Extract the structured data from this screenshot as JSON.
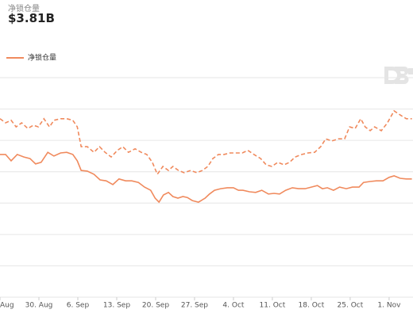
{
  "header": {
    "label": "净锁仓量",
    "value": "$3.81B"
  },
  "chart_data": {
    "type": "line",
    "legend_label": "净锁仓量",
    "xlim": [
      0,
      74.3
    ],
    "xticks": [
      {
        "value": 0,
        "label": "Aug"
      },
      {
        "value": 7,
        "label": "30. Aug"
      },
      {
        "value": 14,
        "label": "6. Sep"
      },
      {
        "value": 21,
        "label": "13. Sep"
      },
      {
        "value": 28,
        "label": "20. Sep"
      },
      {
        "value": 35,
        "label": "27. Sep"
      },
      {
        "value": 42,
        "label": "4. Oct"
      },
      {
        "value": 49,
        "label": "11. Oct"
      },
      {
        "value": 56,
        "label": "18. Oct"
      },
      {
        "value": 63,
        "label": "25. Oct"
      },
      {
        "value": 70,
        "label": "1. Nov"
      }
    ],
    "ylim": [
      0,
      7
    ],
    "yticks": [
      0,
      1,
      2,
      3,
      4,
      5,
      6,
      7
    ],
    "grid": true,
    "series": [
      {
        "name": "净锁仓量",
        "color": "#f08a5d",
        "dash": false,
        "x": [
          0.0,
          1.0,
          2.0,
          3.1,
          4.3,
          5.4,
          6.4,
          7.4,
          8.6,
          9.7,
          10.9,
          12.0,
          13.1,
          13.9,
          14.6,
          15.7,
          16.9,
          18.0,
          19.1,
          20.3,
          21.4,
          22.6,
          23.7,
          24.9,
          26.0,
          27.1,
          27.9,
          28.6,
          29.4,
          30.3,
          31.1,
          32.0,
          32.9,
          33.7,
          34.6,
          35.7,
          36.9,
          37.7,
          38.6,
          39.7,
          40.9,
          42.0,
          42.9,
          43.7,
          44.9,
          46.0,
          47.1,
          48.3,
          49.3,
          50.3,
          51.4,
          52.6,
          53.7,
          54.9,
          56.0,
          57.1,
          58.0,
          58.9,
          60.0,
          61.1,
          62.3,
          63.4,
          64.6,
          65.4,
          66.6,
          67.7,
          68.9,
          70.0,
          70.9,
          72.0,
          73.1,
          74.1
        ],
        "values": [
          4.55,
          4.55,
          4.35,
          4.55,
          4.47,
          4.42,
          4.25,
          4.3,
          4.62,
          4.5,
          4.6,
          4.62,
          4.55,
          4.35,
          4.04,
          4.02,
          3.92,
          3.74,
          3.71,
          3.59,
          3.77,
          3.71,
          3.71,
          3.66,
          3.51,
          3.41,
          3.16,
          3.03,
          3.26,
          3.34,
          3.21,
          3.16,
          3.21,
          3.18,
          3.08,
          3.03,
          3.16,
          3.29,
          3.41,
          3.46,
          3.49,
          3.49,
          3.41,
          3.41,
          3.36,
          3.34,
          3.41,
          3.29,
          3.31,
          3.29,
          3.41,
          3.49,
          3.46,
          3.46,
          3.51,
          3.56,
          3.46,
          3.49,
          3.41,
          3.51,
          3.46,
          3.51,
          3.51,
          3.66,
          3.69,
          3.71,
          3.71,
          3.82,
          3.87,
          3.79,
          3.77,
          3.77
        ]
      },
      {
        "color": "#f08a5d",
        "dash": true,
        "x": [
          0.0,
          1.0,
          2.0,
          2.9,
          3.9,
          5.0,
          6.0,
          6.9,
          7.9,
          8.9,
          9.7,
          10.9,
          12.0,
          13.1,
          13.9,
          14.6,
          15.7,
          16.9,
          17.9,
          18.9,
          20.0,
          21.1,
          22.1,
          23.1,
          24.3,
          25.4,
          26.4,
          27.4,
          28.3,
          29.3,
          30.3,
          31.1,
          32.1,
          33.1,
          34.3,
          35.4,
          36.4,
          37.4,
          38.3,
          39.3,
          40.3,
          41.4,
          42.4,
          43.6,
          44.6,
          45.7,
          46.9,
          47.9,
          48.9,
          50.0,
          51.1,
          52.1,
          53.1,
          54.3,
          55.4,
          56.6,
          57.7,
          58.6,
          59.7,
          60.9,
          62.0,
          62.9,
          63.9,
          64.9,
          65.7,
          66.6,
          67.4,
          68.6,
          69.7,
          70.9,
          72.0,
          73.1,
          74.1
        ],
        "values": [
          5.69,
          5.56,
          5.64,
          5.43,
          5.56,
          5.38,
          5.48,
          5.43,
          5.69,
          5.43,
          5.64,
          5.69,
          5.69,
          5.64,
          5.43,
          4.8,
          4.8,
          4.62,
          4.8,
          4.62,
          4.47,
          4.68,
          4.8,
          4.62,
          4.73,
          4.62,
          4.55,
          4.3,
          3.92,
          4.17,
          4.04,
          4.17,
          4.04,
          3.97,
          4.04,
          3.97,
          4.04,
          4.17,
          4.42,
          4.55,
          4.55,
          4.6,
          4.6,
          4.6,
          4.68,
          4.55,
          4.42,
          4.22,
          4.17,
          4.3,
          4.22,
          4.3,
          4.47,
          4.55,
          4.6,
          4.62,
          4.8,
          5.05,
          4.98,
          5.05,
          5.05,
          5.43,
          5.38,
          5.69,
          5.43,
          5.31,
          5.43,
          5.31,
          5.56,
          5.94,
          5.81,
          5.69,
          5.69
        ]
      }
    ]
  }
}
